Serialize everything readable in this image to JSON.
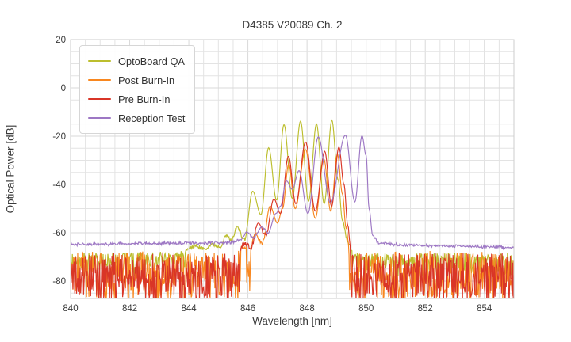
{
  "window": {
    "title": "D4385 V20089 Ch. 2"
  },
  "colors": {
    "background": "#ffffff",
    "grid_major": "#d9d9d9",
    "grid_minor": "#e3e3e3",
    "plot_border": "#cccccc",
    "text": "#3a3a3a",
    "optoboard_qa": "#bcbe2d",
    "post_burn_in": "#f8871f",
    "pre_burn_in": "#d93527",
    "reception_test": "#9d77c4"
  },
  "chart_data": {
    "type": "line",
    "title": "D4385 V20089 Ch. 2",
    "xlabel": "Wavelength [nm]",
    "ylabel": "Optical Power [dB]",
    "xlim": [
      840,
      855
    ],
    "ylim": [
      -87.2,
      20
    ],
    "x_ticks": [
      840,
      842,
      844,
      846,
      848,
      850,
      852,
      854
    ],
    "y_ticks": [
      20,
      0,
      -20,
      -40,
      -60,
      -80
    ],
    "x_minor_step": 0.5,
    "y_minor_step": 5,
    "grid": true,
    "legend_position": "upper-left",
    "series": [
      {
        "name": "OptoBoard QA",
        "color": "#bcbe2d",
        "noise": {
          "threshold": -67.5,
          "down": 9,
          "up": 1.2,
          "pow": 1.6,
          "mid_below": -56,
          "mid": 1.6,
          "seed": 11
        },
        "points": [
          [
            840.0,
            -69.3
          ],
          [
            843.6,
            -69.0
          ],
          [
            844.25,
            -65.4
          ],
          [
            844.5,
            -66.6
          ],
          [
            844.8,
            -64.9
          ],
          [
            845.05,
            -65.6
          ],
          [
            845.28,
            -61.2
          ],
          [
            845.45,
            -63.2
          ],
          [
            845.62,
            -57.5
          ],
          [
            845.88,
            -62.8
          ],
          [
            846.16,
            -42.8
          ],
          [
            846.44,
            -52.5
          ],
          [
            846.7,
            -24.8
          ],
          [
            846.97,
            -46.5
          ],
          [
            847.22,
            -15.2
          ],
          [
            847.5,
            -45.8
          ],
          [
            847.78,
            -13.8
          ],
          [
            848.05,
            -47.0
          ],
          [
            848.32,
            -15.0
          ],
          [
            848.58,
            -48.0
          ],
          [
            848.84,
            -13.4
          ],
          [
            849.05,
            -38.0
          ],
          [
            849.2,
            -55.0
          ],
          [
            849.38,
            -64.0
          ],
          [
            849.6,
            -69.3
          ],
          [
            855.0,
            -69.5
          ]
        ]
      },
      {
        "name": "Post Burn-In",
        "color": "#f8871f",
        "noise": {
          "threshold": -66.5,
          "down": 21,
          "up": 1.0,
          "pow": 1.1,
          "mid_below": -58,
          "mid": 2.0,
          "seed": 22
        },
        "points": [
          [
            840.0,
            -68.4
          ],
          [
            845.55,
            -68.4
          ],
          [
            845.85,
            -66.0
          ],
          [
            846.05,
            -67.0
          ],
          [
            846.25,
            -61.0
          ],
          [
            846.5,
            -64.0
          ],
          [
            846.75,
            -49.0
          ],
          [
            847.0,
            -56.0
          ],
          [
            847.17,
            -50.0
          ],
          [
            847.38,
            -31.5
          ],
          [
            847.6,
            -50.0
          ],
          [
            847.95,
            -25.5
          ],
          [
            848.28,
            -54.0
          ],
          [
            848.57,
            -29.5
          ],
          [
            848.8,
            -51.0
          ],
          [
            849.03,
            -27.5
          ],
          [
            849.2,
            -44.0
          ],
          [
            849.32,
            -58.0
          ],
          [
            849.45,
            -68.4
          ],
          [
            855.0,
            -68.4
          ]
        ]
      },
      {
        "name": "Pre Burn-In",
        "color": "#d93527",
        "noise": {
          "threshold": -67.0,
          "down": 20,
          "up": 1.2,
          "pow": 1.1,
          "mid_below": -58,
          "mid": 2.0,
          "seed": 33
        },
        "points": [
          [
            840.0,
            -69.0
          ],
          [
            845.6,
            -69.0
          ],
          [
            845.9,
            -64.5
          ],
          [
            846.1,
            -66.0
          ],
          [
            846.35,
            -56.0
          ],
          [
            846.6,
            -61.0
          ],
          [
            846.88,
            -46.0
          ],
          [
            847.1,
            -52.0
          ],
          [
            847.37,
            -28.3
          ],
          [
            847.62,
            -48.0
          ],
          [
            847.95,
            -22.4
          ],
          [
            848.28,
            -51.0
          ],
          [
            848.6,
            -26.3
          ],
          [
            848.83,
            -49.0
          ],
          [
            849.08,
            -24.5
          ],
          [
            849.25,
            -40.0
          ],
          [
            849.38,
            -57.0
          ],
          [
            849.5,
            -69.0
          ],
          [
            855.0,
            -69.0
          ]
        ]
      },
      {
        "name": "Reception Test",
        "color": "#9d77c4",
        "noise": {
          "threshold": -61.0,
          "down": 0.9,
          "up": 0.7,
          "pow": 1.0,
          "mid_below": -58,
          "mid": 0.6,
          "seed": 44
        },
        "points": [
          [
            840.0,
            -64.6
          ],
          [
            843.5,
            -64.3
          ],
          [
            845.3,
            -64.0
          ],
          [
            845.75,
            -63.0
          ],
          [
            845.97,
            -59.8
          ],
          [
            846.2,
            -62.0
          ],
          [
            846.47,
            -57.6
          ],
          [
            846.68,
            -60.0
          ],
          [
            846.95,
            -52.0
          ],
          [
            847.1,
            -49.0
          ],
          [
            847.3,
            -38.5
          ],
          [
            847.5,
            -42.0
          ],
          [
            847.73,
            -34.3
          ],
          [
            848.03,
            -52.0
          ],
          [
            848.38,
            -20.3
          ],
          [
            848.79,
            -47.6
          ],
          [
            849.3,
            -19.6
          ],
          [
            849.62,
            -47.2
          ],
          [
            849.86,
            -19.8
          ],
          [
            850.0,
            -28.0
          ],
          [
            850.1,
            -50.0
          ],
          [
            850.22,
            -61.0
          ],
          [
            850.45,
            -64.3
          ],
          [
            851.5,
            -65.1
          ],
          [
            855.0,
            -65.9
          ]
        ]
      }
    ]
  },
  "legend": {
    "items": [
      {
        "label": "OptoBoard QA",
        "color": "#bcbe2d"
      },
      {
        "label": "Post Burn-In",
        "color": "#f8871f"
      },
      {
        "label": "Pre Burn-In",
        "color": "#d93527"
      },
      {
        "label": "Reception Test",
        "color": "#9d77c4"
      }
    ]
  }
}
